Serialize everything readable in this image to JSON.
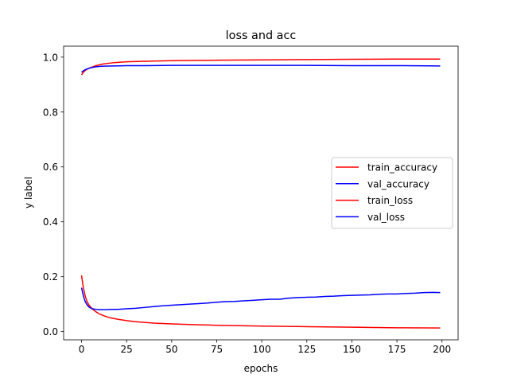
{
  "chart_data": {
    "type": "line",
    "title": "loss and acc",
    "xlabel": "epochs",
    "ylabel": "y label",
    "xlim": [
      -9.95,
      208.95
    ],
    "ylim": [
      -0.03,
      1.04
    ],
    "xticks": [
      0,
      25,
      50,
      75,
      100,
      125,
      150,
      175,
      200
    ],
    "yticks": [
      0.0,
      0.2,
      0.4,
      0.6,
      0.8,
      1.0
    ],
    "xtick_labels": [
      "0",
      "25",
      "50",
      "75",
      "100",
      "125",
      "150",
      "175",
      "200"
    ],
    "ytick_labels": [
      "0.0",
      "0.2",
      "0.4",
      "0.6",
      "0.8",
      "1.0"
    ],
    "grid": false,
    "legend_position": "center-right",
    "series": [
      {
        "name": "train_accuracy",
        "color": "#ff0000",
        "x": [
          0,
          1,
          2,
          3,
          5,
          8,
          12,
          18,
          25,
          35,
          50,
          75,
          100,
          125,
          150,
          175,
          199
        ],
        "y": [
          0.935,
          0.945,
          0.951,
          0.956,
          0.962,
          0.969,
          0.975,
          0.98,
          0.983,
          0.985,
          0.987,
          0.989,
          0.99,
          0.991,
          0.992,
          0.993,
          0.993
        ]
      },
      {
        "name": "val_accuracy",
        "color": "#0000ff",
        "x": [
          0,
          1,
          2,
          3,
          5,
          8,
          12,
          18,
          25,
          35,
          50,
          75,
          100,
          125,
          150,
          175,
          199
        ],
        "y": [
          0.945,
          0.95,
          0.954,
          0.957,
          0.961,
          0.965,
          0.967,
          0.968,
          0.969,
          0.969,
          0.97,
          0.97,
          0.97,
          0.97,
          0.969,
          0.969,
          0.968
        ]
      },
      {
        "name": "train_loss",
        "color": "#ff0000",
        "x": [
          0,
          1,
          2,
          3,
          4,
          6,
          8,
          10,
          13,
          16,
          20,
          25,
          30,
          40,
          50,
          60,
          75,
          100,
          125,
          150,
          175,
          199
        ],
        "y": [
          0.205,
          0.16,
          0.13,
          0.11,
          0.098,
          0.082,
          0.072,
          0.064,
          0.056,
          0.05,
          0.045,
          0.04,
          0.036,
          0.031,
          0.028,
          0.026,
          0.023,
          0.02,
          0.018,
          0.016,
          0.014,
          0.013
        ]
      },
      {
        "name": "val_loss",
        "color": "#0000ff",
        "x": [
          0,
          1,
          2,
          3,
          4,
          5,
          6,
          8,
          10,
          13,
          16,
          20,
          25,
          30,
          35,
          40,
          45,
          50,
          55,
          60,
          65,
          70,
          75,
          80,
          85,
          90,
          95,
          100,
          105,
          110,
          115,
          120,
          125,
          130,
          135,
          140,
          145,
          150,
          155,
          160,
          165,
          170,
          175,
          180,
          185,
          190,
          195,
          199
        ],
        "y": [
          0.16,
          0.13,
          0.11,
          0.098,
          0.09,
          0.086,
          0.083,
          0.081,
          0.08,
          0.08,
          0.081,
          0.081,
          0.083,
          0.085,
          0.088,
          0.091,
          0.094,
          0.096,
          0.098,
          0.1,
          0.102,
          0.104,
          0.107,
          0.109,
          0.11,
          0.112,
          0.114,
          0.116,
          0.118,
          0.118,
          0.122,
          0.124,
          0.125,
          0.126,
          0.128,
          0.129,
          0.131,
          0.132,
          0.133,
          0.134,
          0.136,
          0.137,
          0.137,
          0.139,
          0.14,
          0.142,
          0.143,
          0.142
        ]
      }
    ]
  }
}
